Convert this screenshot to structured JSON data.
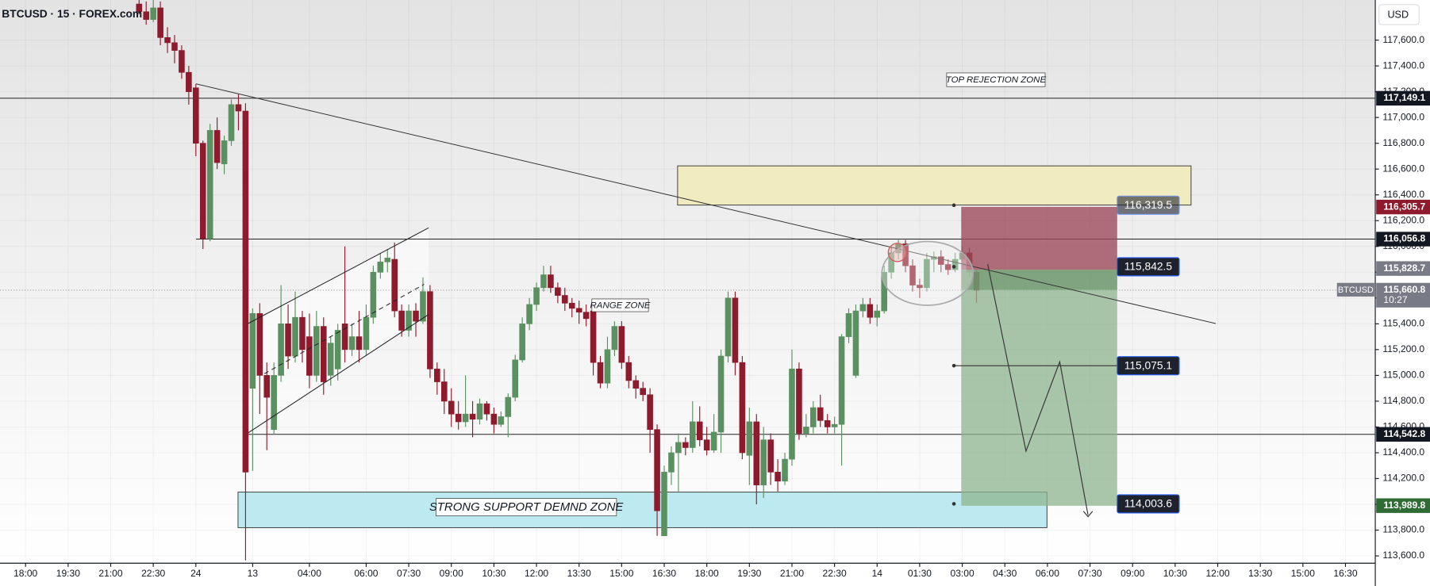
{
  "chart_data": {
    "type": "candlestick",
    "title": "BTCUSD · 15 · FOREX.com",
    "currency": "USD",
    "symbol_tag": "BTCUSD",
    "countdown": "10:27",
    "up_color": "#5b9161",
    "down_color": "#8e1b2d",
    "grid": true,
    "xlim": [
      -3.6,
      190.2
    ],
    "ylim": [
      113543.5,
      117911
    ],
    "xticks": [
      {
        "value": 0,
        "label": "18:00"
      },
      {
        "value": 6,
        "label": "19:30"
      },
      {
        "value": 12,
        "label": "21:00"
      },
      {
        "value": 18,
        "label": "22:30"
      },
      24,
      {
        "value": 32,
        "label": "13"
      },
      {
        "value": 40,
        "label": "04:00"
      },
      {
        "value": 48,
        "label": "06:00"
      },
      {
        "value": 54,
        "label": "07:30"
      },
      {
        "value": 60,
        "label": "09:00"
      },
      {
        "value": 66,
        "label": "10:30"
      },
      {
        "value": 72,
        "label": "12:00"
      },
      {
        "value": 78,
        "label": "13:30"
      },
      {
        "value": 84,
        "label": "15:00"
      },
      {
        "value": 90,
        "label": "16:30"
      },
      {
        "value": 96,
        "label": "18:00"
      },
      {
        "value": 102,
        "label": "19:30"
      },
      {
        "value": 108,
        "label": "21:00"
      },
      {
        "value": 114,
        "label": "22:30"
      },
      {
        "value": 120,
        "label": "14"
      },
      {
        "value": 126,
        "label": "01:30"
      },
      {
        "value": 132,
        "label": "03:00"
      },
      {
        "value": 138,
        "label": "04:30"
      },
      {
        "value": 144,
        "label": "06:00"
      },
      {
        "value": 150,
        "label": "07:30"
      },
      {
        "value": 156,
        "label": "09:00"
      },
      {
        "value": 162,
        "label": "10:30"
      },
      {
        "value": 168,
        "label": "12:00"
      },
      {
        "value": 174,
        "label": "13:30"
      },
      {
        "value": 180,
        "label": "15:00"
      },
      {
        "value": 186,
        "label": "16:30"
      }
    ],
    "yticks": [
      {
        "value": 113600,
        "label": "113,600.0"
      },
      {
        "value": 113800,
        "label": "113,800.0"
      },
      {
        "value": 114000,
        "label": "114,000.0"
      },
      {
        "value": 114200,
        "label": "114,200.0"
      },
      {
        "value": 114400,
        "label": "114,400.0"
      },
      {
        "value": 114600,
        "label": "114,600.0"
      },
      {
        "value": 114800,
        "label": "114,800.0"
      },
      {
        "value": 115000,
        "label": "115,000.0"
      },
      {
        "value": 115200,
        "label": "115,200.0"
      },
      {
        "value": 115400,
        "label": "115,400.0"
      },
      {
        "value": 115600,
        "label": "115,600.0"
      },
      {
        "value": 115800,
        "label": "115,800.0"
      },
      {
        "value": 116000,
        "label": "116,000.0"
      },
      {
        "value": 116200,
        "label": "116,200.0"
      },
      {
        "value": 116400,
        "label": "116,400.0"
      },
      {
        "value": 116600,
        "label": "116,600.0"
      },
      {
        "value": 116800,
        "label": "116,800.0"
      },
      {
        "value": 117000,
        "label": "117,000.0"
      },
      {
        "value": 117200,
        "label": "117,200.0"
      },
      {
        "value": 117400,
        "label": "117,400.0"
      },
      {
        "value": 117600,
        "label": "117,600.0"
      }
    ],
    "axis_tags": [
      {
        "value": 117149.1,
        "label": "117,149.1",
        "color": "#131722",
        "line": "solid"
      },
      {
        "value": 116305.7,
        "label": "116,305.7",
        "color": "#8e1b2d"
      },
      {
        "value": 116056.8,
        "label": "116,056.8",
        "color": "#131722",
        "line": "solid"
      },
      {
        "value": 115828.7,
        "label": "115,828.7",
        "color": "#787b86"
      },
      {
        "value": 115660.8,
        "label": "115,660.8",
        "color": "#787b86",
        "line": "dotted"
      },
      {
        "value": 114542.8,
        "label": "114,542.8",
        "color": "#131722",
        "line": "solid"
      },
      {
        "value": 113989.8,
        "label": "113,989.8",
        "color": "#2e6b35"
      }
    ],
    "position_labels": [
      {
        "value": 116319.5,
        "label": "116,319.5"
      },
      {
        "value": 115842.5,
        "label": "115,842.5"
      },
      {
        "value": 115075.1,
        "label": "115,075.1"
      },
      {
        "value": 114003.6,
        "label": "114,003.6"
      }
    ],
    "annotations": [
      "TOP REJECTION ZONE",
      "RANGE ZONE",
      "STRONG SUPPORT DEMND ZONE"
    ],
    "x": [
      16,
      17,
      18,
      19,
      20,
      21,
      22,
      23,
      24,
      25,
      26,
      27,
      28,
      29,
      30,
      31,
      32,
      33,
      34,
      35,
      36,
      37,
      38,
      39,
      40,
      41,
      42,
      43,
      44,
      45,
      46,
      47,
      48,
      49,
      50,
      51,
      52,
      53,
      54,
      55,
      56,
      57,
      58,
      59,
      60,
      61,
      62,
      63,
      64,
      65,
      66,
      67,
      68,
      69,
      70,
      71,
      72,
      73,
      74,
      75,
      76,
      77,
      78,
      79,
      80,
      81,
      82,
      83,
      84,
      85,
      86,
      87,
      88,
      89,
      90,
      91,
      92,
      93,
      94,
      95,
      96,
      97,
      98,
      99,
      100,
      101,
      102,
      103,
      104,
      105,
      106,
      107,
      108,
      109,
      110,
      111,
      112,
      113,
      114,
      115,
      116,
      117,
      118,
      119,
      120,
      121,
      122,
      123,
      124,
      125,
      126,
      127,
      128,
      129,
      130,
      131,
      132,
      133,
      134
    ],
    "open": [
      117880,
      117820,
      117760,
      117850,
      117620,
      117580,
      117520,
      117350,
      117230,
      116800,
      116060,
      116900,
      116640,
      116820,
      117100,
      117050,
      114900,
      115480,
      115000,
      114580,
      115000,
      115400,
      115150,
      115450,
      115300,
      115000,
      115380,
      115000,
      115050,
      115400,
      115200,
      115300,
      115200,
      115450,
      115800,
      115880,
      115900,
      115500,
      115350,
      115500,
      115420,
      115650,
      115050,
      114950,
      114800,
      114700,
      114640,
      114700,
      114660,
      114780,
      114700,
      114620,
      114680,
      114830,
      115120,
      115400,
      115550,
      115680,
      115780,
      115680,
      115620,
      115560,
      115520,
      115490,
      115500,
      115100,
      114940,
      115200,
      115380,
      115100,
      114960,
      114900,
      114850,
      114580,
      113756,
      114250,
      114400,
      114480,
      114440,
      114640,
      114500,
      114420,
      114560,
      115150,
      115600,
      115100,
      114380,
      114640,
      114150,
      114500,
      114250,
      114180,
      114350,
      115050,
      114550,
      114600,
      114750,
      114650,
      114600,
      114620,
      115300,
      115000,
      115500,
      115550,
      115450,
      115500,
      115800,
      115950,
      116020,
      115850,
      115700,
      115680,
      115900,
      115920,
      115860,
      115820,
      115900,
      115950,
      115800
    ],
    "high": [
      117911,
      117900,
      117911,
      117900,
      117700,
      117640,
      117560,
      117400,
      117260,
      116820,
      116950,
      117000,
      116860,
      117140,
      117180,
      117110,
      115520,
      115560,
      115100,
      115100,
      115700,
      115550,
      115650,
      115500,
      115480,
      115500,
      115450,
      115300,
      115400,
      116000,
      115400,
      115500,
      115550,
      115850,
      115950,
      115980,
      116030,
      115550,
      115550,
      115560,
      115760,
      115700,
      115100,
      115050,
      114900,
      114800,
      115000,
      114800,
      114820,
      114800,
      114750,
      114720,
      114860,
      115160,
      115450,
      115600,
      115720,
      115850,
      115850,
      115720,
      115680,
      115600,
      115580,
      115550,
      115540,
      115150,
      115300,
      115420,
      115420,
      115150,
      115000,
      114950,
      114900,
      114620,
      114300,
      114450,
      114550,
      114520,
      114800,
      114760,
      114600,
      114700,
      115200,
      115650,
      115650,
      115150,
      114750,
      114700,
      114600,
      114550,
      114350,
      114400,
      115200,
      115100,
      114700,
      114800,
      114850,
      114700,
      114680,
      115320,
      115520,
      115550,
      115600,
      115600,
      115550,
      115850,
      116000,
      116050,
      116050,
      115900,
      115750,
      115950,
      115960,
      115970,
      115900,
      115950,
      116000,
      115990,
      115820
    ],
    "low": [
      117800,
      117720,
      117740,
      117560,
      117500,
      117420,
      117300,
      117100,
      116700,
      115980,
      116040,
      116600,
      116560,
      116780,
      116900,
      113565,
      114260,
      114700,
      114420,
      114540,
      114950,
      115050,
      115100,
      115100,
      114900,
      114950,
      114850,
      114920,
      114960,
      115100,
      115150,
      115100,
      115150,
      115400,
      115750,
      115800,
      115450,
      115300,
      115300,
      115300,
      115400,
      114980,
      114850,
      114700,
      114600,
      114580,
      114600,
      114520,
      114620,
      114650,
      114550,
      114600,
      114520,
      114800,
      115100,
      115350,
      115500,
      115650,
      115640,
      115560,
      115500,
      115450,
      115400,
      115380,
      115000,
      114900,
      114900,
      115150,
      115050,
      114900,
      114820,
      114800,
      114400,
      113756,
      113756,
      114150,
      114100,
      114380,
      114400,
      114450,
      114380,
      114400,
      114400,
      115100,
      115000,
      114350,
      114150,
      114000,
      114050,
      114150,
      114100,
      114150,
      114300,
      114500,
      114520,
      114550,
      114600,
      114550,
      114550,
      114300,
      115250,
      114980,
      115450,
      115400,
      115380,
      115480,
      115750,
      115900,
      115800,
      115650,
      115600,
      115650,
      115800,
      115800,
      115780,
      115800,
      115880,
      115760,
      115560
    ],
    "close": [
      117820,
      117760,
      117850,
      117620,
      117580,
      117520,
      117350,
      117200,
      116800,
      116060,
      116900,
      116650,
      116820,
      117100,
      117050,
      114250,
      115480,
      115000,
      114830,
      115000,
      115400,
      115150,
      115450,
      115200,
      115000,
      115380,
      114950,
      115250,
      115350,
      115200,
      115300,
      115200,
      115450,
      115800,
      115880,
      115910,
      115500,
      115350,
      115500,
      115420,
      115650,
      115050,
      114950,
      114800,
      114700,
      114640,
      114700,
      114660,
      114780,
      114700,
      114620,
      114680,
      114830,
      115120,
      115400,
      115550,
      115680,
      115780,
      115680,
      115620,
      115560,
      115520,
      115490,
      115440,
      115100,
      114940,
      115200,
      115380,
      115100,
      114960,
      114900,
      114850,
      114580,
      113950,
      114250,
      114400,
      114480,
      114440,
      114640,
      114500,
      114420,
      114560,
      115150,
      115600,
      115100,
      114400,
      114640,
      114150,
      114500,
      114250,
      114180,
      114350,
      115050,
      114550,
      114600,
      114750,
      114650,
      114600,
      114620,
      115300,
      115480,
      115500,
      115550,
      115450,
      115500,
      115800,
      115950,
      116020,
      115850,
      115700,
      115680,
      115900,
      115920,
      115860,
      115820,
      115900,
      115950,
      115800,
      115660
    ]
  }
}
